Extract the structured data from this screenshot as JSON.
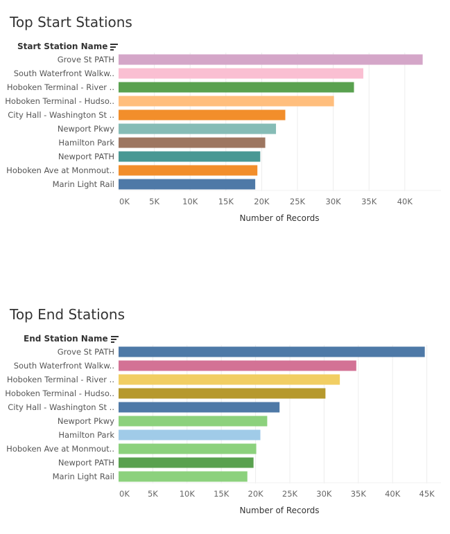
{
  "chart_data": [
    {
      "type": "bar",
      "orientation": "horizontal",
      "title": "Top Start Stations",
      "dimension_label": "Start Station Name",
      "xlabel": "Number of Records",
      "xlim": [
        0,
        45000
      ],
      "xticks": [
        0,
        5000,
        10000,
        15000,
        20000,
        25000,
        30000,
        35000,
        40000
      ],
      "xtick_labels": [
        "0K",
        "5K",
        "10K",
        "15K",
        "20K",
        "25K",
        "30K",
        "35K",
        "40K"
      ],
      "grid": true,
      "categories": [
        "Grove St PATH",
        "South Waterfront Walkw..",
        "Hoboken Terminal - River ..",
        "Hoboken Terminal - Hudso..",
        "City Hall - Washington St ..",
        "Newport Pkwy",
        "Hamilton Park",
        "Newport PATH",
        "Hoboken Ave at Monmout..",
        "Marin Light Rail"
      ],
      "values": [
        42500,
        34200,
        32900,
        30100,
        23300,
        22000,
        20500,
        19800,
        19400,
        19100
      ],
      "colors": [
        "#d4a6c8",
        "#fabfd2",
        "#59a14f",
        "#ffbe7d",
        "#f28e2b",
        "#86bcb6",
        "#9d7660",
        "#499894",
        "#f28e2b",
        "#4e79a7"
      ]
    },
    {
      "type": "bar",
      "orientation": "horizontal",
      "title": "Top End Stations",
      "dimension_label": "End Station Name",
      "xlabel": "Number of Records",
      "xlim": [
        0,
        47000
      ],
      "xticks": [
        0,
        5000,
        10000,
        15000,
        20000,
        25000,
        30000,
        35000,
        40000,
        45000
      ],
      "xtick_labels": [
        "0K",
        "5K",
        "10K",
        "15K",
        "20K",
        "25K",
        "30K",
        "35K",
        "40K",
        "45K"
      ],
      "grid": true,
      "categories": [
        "Grove St PATH",
        "South Waterfront Walkw..",
        "Hoboken Terminal - River ..",
        "Hoboken Terminal - Hudso..",
        "City Hall - Washington St ..",
        "Newport Pkwy",
        "Hamilton Park",
        "Hoboken Ave at Monmout..",
        "Newport PATH",
        "Marin Light Rail"
      ],
      "values": [
        44700,
        34700,
        32300,
        30200,
        23500,
        21700,
        20700,
        20100,
        19700,
        18800
      ],
      "colors": [
        "#4e79a7",
        "#d37295",
        "#f1ce63",
        "#b6992d",
        "#4e79a7",
        "#8cd17d",
        "#a0cbe8",
        "#8cd17d",
        "#59a14f",
        "#8cd17d"
      ]
    }
  ]
}
